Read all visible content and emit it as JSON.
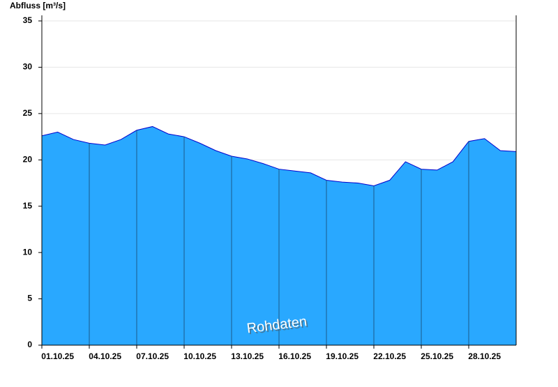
{
  "chart_data": {
    "type": "area",
    "y_label": "Abfluss [m³/s]",
    "annotation": "Rohdaten",
    "x": [
      "01.10.25",
      "02.10.25",
      "03.10.25",
      "04.10.25",
      "05.10.25",
      "06.10.25",
      "07.10.25",
      "08.10.25",
      "09.10.25",
      "10.10.25",
      "11.10.25",
      "12.10.25",
      "13.10.25",
      "14.10.25",
      "15.10.25",
      "16.10.25",
      "17.10.25",
      "18.10.25",
      "19.10.25",
      "20.10.25",
      "21.10.25",
      "22.10.25",
      "23.10.25",
      "24.10.25",
      "25.10.25",
      "26.10.25",
      "27.10.25",
      "28.10.25",
      "29.10.25",
      "30.10.25",
      "31.10.25"
    ],
    "values": [
      22.6,
      23.0,
      22.2,
      21.8,
      21.6,
      22.2,
      23.2,
      23.6,
      22.8,
      22.5,
      21.8,
      21.0,
      20.4,
      20.1,
      19.6,
      19.0,
      18.8,
      18.6,
      17.8,
      17.6,
      17.5,
      17.2,
      17.8,
      19.8,
      19.0,
      18.9,
      19.8,
      22.0,
      22.3,
      21.0,
      20.9
    ],
    "color": "#29a8ff",
    "line_color": "#0000cc",
    "xlim": [
      "01.10.25",
      "31.10.25"
    ],
    "xticks": [
      "01.10.25",
      "04.10.25",
      "07.10.25",
      "10.10.25",
      "13.10.25",
      "16.10.25",
      "19.10.25",
      "22.10.25",
      "25.10.25",
      "28.10.25"
    ],
    "ylim": [
      0,
      35
    ],
    "yticks": [
      0,
      5,
      10,
      15,
      20,
      25,
      30,
      35
    ],
    "grid": true
  }
}
